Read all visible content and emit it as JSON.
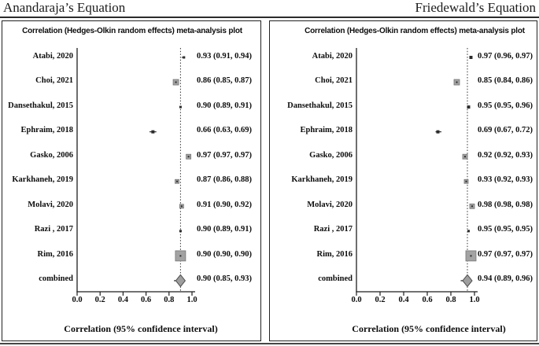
{
  "header": {
    "left_title": "Anandaraja’s Equation",
    "right_title": "Friedewald’s Equation"
  },
  "colors": {
    "line": "#1f1f1f",
    "pooled_line": "#333333",
    "marker_fill": "#a3a3a3",
    "marker_border": "#757575",
    "small_marker": "#2b2b2b",
    "diamond_fill": "#9e9e9e",
    "diamond_border": "#4d4d4d",
    "text": "#0d0d0d"
  },
  "chart_data": [
    {
      "type": "forest",
      "equation": "Anandaraja’s Equation",
      "title": "Correlation (Hedges-Olkin random effects) meta-analysis plot",
      "xlabel": "Correlation (95% confidence interval)",
      "xlim": [
        0.0,
        1.0
      ],
      "xticks": [
        "0.0",
        "0.2",
        "0.4",
        "0.6",
        "0.8",
        "1.0"
      ],
      "pooled_value": 0.9,
      "studies": [
        {
          "label": "Atabi, 2020",
          "value": 0.93,
          "ci_low": 0.91,
          "ci_high": 0.94,
          "display": "0.93 (0.91, 0.94)",
          "marker": "square",
          "size": 3
        },
        {
          "label": "Choi, 2021",
          "value": 0.86,
          "ci_low": 0.85,
          "ci_high": 0.87,
          "display": "0.86 (0.85, 0.87)",
          "marker": "square",
          "size": 7
        },
        {
          "label": "Dansethakul, 2015",
          "value": 0.9,
          "ci_low": 0.89,
          "ci_high": 0.91,
          "display": "0.90 (0.89, 0.91)",
          "marker": "square",
          "size": 3
        },
        {
          "label": "Ephraim, 2018",
          "value": 0.66,
          "ci_low": 0.63,
          "ci_high": 0.69,
          "display": "0.66 (0.63, 0.69)",
          "marker": "square",
          "size": 4
        },
        {
          "label": "Gasko, 2006",
          "value": 0.97,
          "ci_low": 0.97,
          "ci_high": 0.97,
          "display": "0.97 (0.97, 0.97)",
          "marker": "square",
          "size": 6
        },
        {
          "label": "Karkhaneh, 2019",
          "value": 0.87,
          "ci_low": 0.86,
          "ci_high": 0.88,
          "display": "0.87 (0.86, 0.88)",
          "marker": "square",
          "size": 5
        },
        {
          "label": "Molavi, 2020",
          "value": 0.91,
          "ci_low": 0.9,
          "ci_high": 0.92,
          "display": "0.91 (0.90, 0.92)",
          "marker": "square",
          "size": 5
        },
        {
          "label": "Razi , 2017",
          "value": 0.9,
          "ci_low": 0.89,
          "ci_high": 0.91,
          "display": "0.90 (0.89, 0.91)",
          "marker": "square",
          "size": 3
        },
        {
          "label": "Rim, 2016",
          "value": 0.9,
          "ci_low": 0.9,
          "ci_high": 0.9,
          "display": "0.90 (0.90, 0.90)",
          "marker": "square",
          "size": 13
        },
        {
          "label": "combined",
          "value": 0.9,
          "ci_low": 0.85,
          "ci_high": 0.93,
          "display": "0.90 (0.85, 0.93)",
          "marker": "diamond",
          "size": 16
        }
      ]
    },
    {
      "type": "forest",
      "equation": "Friedewald’s Equation",
      "title": "Correlation (Hedges-Olkin random effects) meta-analysis plot",
      "xlabel": "Correlation (95% confidence interval)",
      "xlim": [
        0.0,
        1.0
      ],
      "xticks": [
        "0.0",
        "0.2",
        "0.4",
        "0.6",
        "0.8",
        "1.0"
      ],
      "pooled_value": 0.94,
      "studies": [
        {
          "label": "Atabi, 2020",
          "value": 0.97,
          "ci_low": 0.96,
          "ci_high": 0.97,
          "display": "0.97 (0.96, 0.97)",
          "marker": "square",
          "size": 4
        },
        {
          "label": "Choi, 2021",
          "value": 0.85,
          "ci_low": 0.84,
          "ci_high": 0.86,
          "display": "0.85 (0.84, 0.86)",
          "marker": "square",
          "size": 7
        },
        {
          "label": "Dansethakul, 2015",
          "value": 0.95,
          "ci_low": 0.95,
          "ci_high": 0.96,
          "display": "0.95 (0.95, 0.96)",
          "marker": "square",
          "size": 4
        },
        {
          "label": "Ephraim, 2018",
          "value": 0.69,
          "ci_low": 0.67,
          "ci_high": 0.72,
          "display": "0.69 (0.67, 0.72)",
          "marker": "square",
          "size": 4
        },
        {
          "label": "Gasko, 2006",
          "value": 0.92,
          "ci_low": 0.92,
          "ci_high": 0.93,
          "display": "0.92 (0.92, 0.93)",
          "marker": "square",
          "size": 6
        },
        {
          "label": "Karkhaneh, 2019",
          "value": 0.93,
          "ci_low": 0.92,
          "ci_high": 0.93,
          "display": "0.93 (0.92, 0.93)",
          "marker": "square",
          "size": 5
        },
        {
          "label": "Molavi, 2020",
          "value": 0.98,
          "ci_low": 0.98,
          "ci_high": 0.98,
          "display": "0.98 (0.98, 0.98)",
          "marker": "square",
          "size": 6
        },
        {
          "label": "Razi , 2017",
          "value": 0.95,
          "ci_low": 0.95,
          "ci_high": 0.95,
          "display": "0.95 (0.95, 0.95)",
          "marker": "square",
          "size": 3
        },
        {
          "label": "Rim, 2016",
          "value": 0.97,
          "ci_low": 0.97,
          "ci_high": 0.97,
          "display": "0.97 (0.97, 0.97)",
          "marker": "square",
          "size": 13
        },
        {
          "label": "combined",
          "value": 0.94,
          "ci_low": 0.89,
          "ci_high": 0.96,
          "display": "0.94 (0.89, 0.96)",
          "marker": "diamond",
          "size": 16
        }
      ]
    }
  ]
}
